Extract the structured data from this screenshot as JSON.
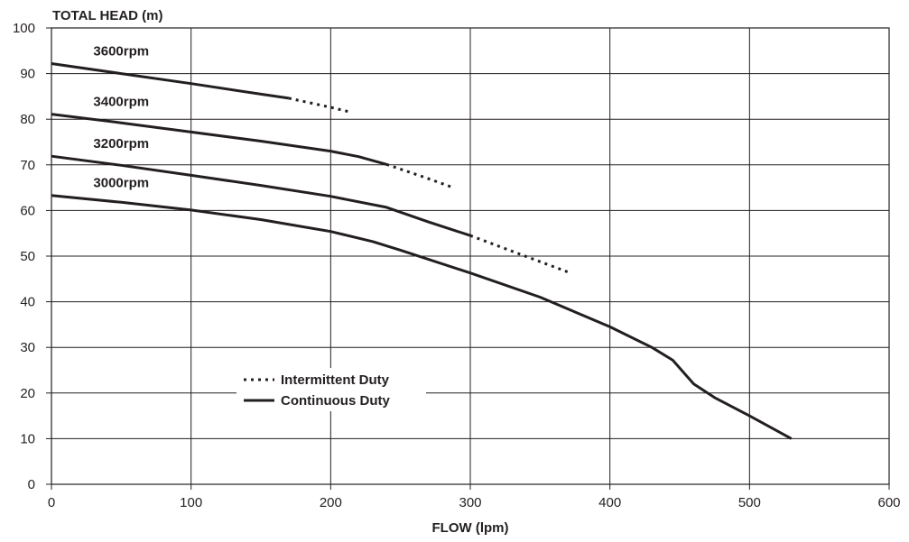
{
  "chart_data": {
    "type": "line",
    "ylabel": "TOTAL HEAD (m)",
    "xlabel": "FLOW (lpm)",
    "xlim": [
      0,
      600
    ],
    "ylim": [
      0,
      100
    ],
    "xticks": [
      0,
      100,
      200,
      300,
      400,
      500,
      600
    ],
    "yticks": [
      0,
      10,
      20,
      30,
      40,
      50,
      60,
      70,
      80,
      90,
      100
    ],
    "grid": true,
    "legend_position": "lower-left",
    "legend": {
      "intermittent": "Intermittent Duty",
      "continuous": "Continuous Duty"
    },
    "series": [
      {
        "name": "3600rpm",
        "continuous": [
          [
            0,
            92.2
          ],
          [
            50,
            90.0
          ],
          [
            100,
            87.8
          ],
          [
            150,
            85.5
          ],
          [
            170,
            84.6
          ]
        ],
        "intermittent": [
          [
            170,
            84.6
          ],
          [
            200,
            82.6
          ],
          [
            215,
            81.5
          ]
        ]
      },
      {
        "name": "3400rpm",
        "continuous": [
          [
            0,
            81.1
          ],
          [
            50,
            79.2
          ],
          [
            100,
            77.2
          ],
          [
            150,
            75.2
          ],
          [
            200,
            73.0
          ],
          [
            220,
            71.8
          ],
          [
            240,
            70.1
          ]
        ],
        "intermittent": [
          [
            240,
            70.1
          ],
          [
            265,
            67.5
          ],
          [
            288,
            65.0
          ]
        ]
      },
      {
        "name": "3200rpm",
        "continuous": [
          [
            0,
            71.9
          ],
          [
            50,
            69.9
          ],
          [
            100,
            67.7
          ],
          [
            150,
            65.5
          ],
          [
            200,
            63.1
          ],
          [
            240,
            60.7
          ],
          [
            270,
            57.5
          ],
          [
            300,
            54.5
          ]
        ],
        "intermittent": [
          [
            300,
            54.5
          ],
          [
            335,
            50.5
          ],
          [
            370,
            46.5
          ]
        ]
      },
      {
        "name": "3000rpm",
        "continuous": [
          [
            0,
            63.3
          ],
          [
            50,
            61.8
          ],
          [
            100,
            60.1
          ],
          [
            150,
            58.0
          ],
          [
            200,
            55.4
          ],
          [
            230,
            53.2
          ],
          [
            250,
            51.3
          ],
          [
            300,
            46.3
          ],
          [
            350,
            41.0
          ],
          [
            400,
            34.5
          ],
          [
            430,
            30.0
          ],
          [
            445,
            27.2
          ],
          [
            460,
            22.0
          ],
          [
            475,
            19.0
          ],
          [
            500,
            15.0
          ],
          [
            530,
            10.0
          ]
        ],
        "intermittent": []
      }
    ],
    "colors": {
      "line": "#231f20",
      "grid": "#231f20"
    }
  }
}
